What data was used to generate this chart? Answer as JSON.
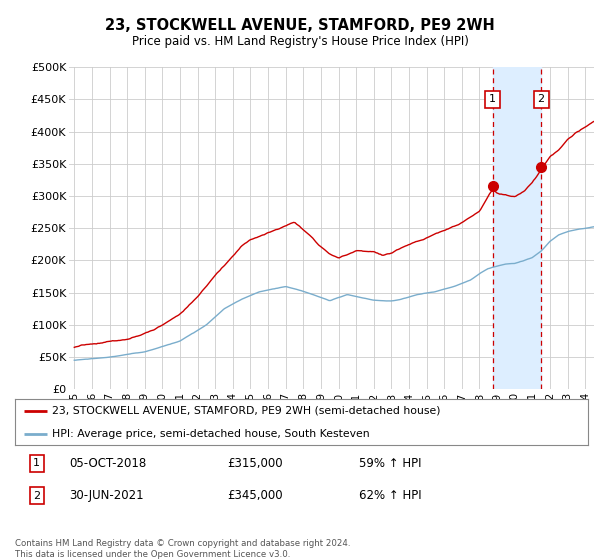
{
  "title": "23, STOCKWELL AVENUE, STAMFORD, PE9 2WH",
  "subtitle": "Price paid vs. HM Land Registry's House Price Index (HPI)",
  "red_label": "23, STOCKWELL AVENUE, STAMFORD, PE9 2WH (semi-detached house)",
  "blue_label": "HPI: Average price, semi-detached house, South Kesteven",
  "annotation1": {
    "num": "1",
    "date": "05-OCT-2018",
    "price": "£315,000",
    "pct": "59% ↑ HPI"
  },
  "annotation2": {
    "num": "2",
    "date": "30-JUN-2021",
    "price": "£345,000",
    "pct": "62% ↑ HPI"
  },
  "footnote": "Contains HM Land Registry data © Crown copyright and database right 2024.\nThis data is licensed under the Open Government Licence v3.0.",
  "red_color": "#cc0000",
  "blue_color": "#7aadcc",
  "vline1_x": 2018.75,
  "vline2_x": 2021.5,
  "vline1_y": 315000,
  "vline2_y": 345000,
  "ylim": [
    0,
    500000
  ],
  "ytick_vals": [
    0,
    50000,
    100000,
    150000,
    200000,
    250000,
    300000,
    350000,
    400000,
    450000,
    500000
  ],
  "ytick_labels": [
    "£0",
    "£50K",
    "£100K",
    "£150K",
    "£200K",
    "£250K",
    "£300K",
    "£350K",
    "£400K",
    "£450K",
    "£500K"
  ],
  "xlim": [
    1994.7,
    2024.5
  ],
  "background_color": "#ffffff",
  "grid_color": "#cccccc",
  "shade_color": "#ddeeff"
}
